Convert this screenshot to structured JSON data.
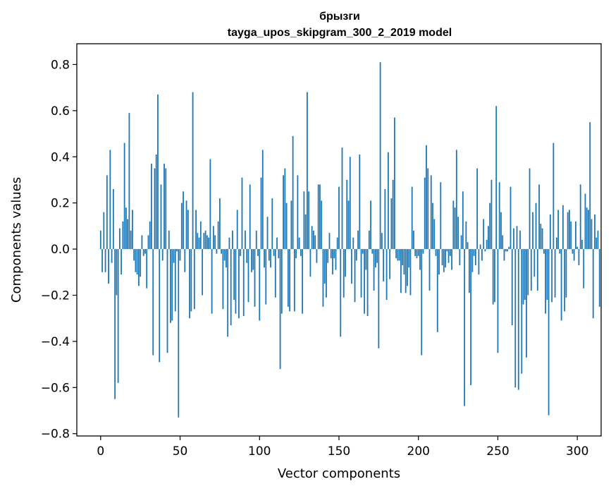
{
  "chart_data": {
    "type": "bar",
    "title": "брызги",
    "subtitle": "tayga_upos_skipgram_300_2_2019 model",
    "xlabel": "Vector components",
    "ylabel": "Components values",
    "xlim": [
      -15,
      315
    ],
    "ylim": [
      -0.81,
      0.89
    ],
    "xticks": [
      0,
      50,
      100,
      150,
      200,
      250,
      300
    ],
    "xtick_labels": [
      "0",
      "50",
      "100",
      "150",
      "200",
      "250",
      "300"
    ],
    "yticks": [
      -0.8,
      -0.6,
      -0.4,
      -0.2,
      0.0,
      0.2,
      0.4,
      0.6,
      0.8
    ],
    "ytick_labels": [
      "−0.8",
      "−0.6",
      "−0.4",
      "−0.2",
      "0.0",
      "0.2",
      "0.4",
      "0.6",
      "0.8"
    ],
    "bar_color": "#1f77b4",
    "grid": false,
    "values": [
      0.08,
      -0.1,
      0.16,
      -0.1,
      0.32,
      -0.15,
      0.43,
      -0.06,
      0.26,
      -0.65,
      -0.2,
      -0.58,
      0.09,
      -0.11,
      0.12,
      0.46,
      0.18,
      0.13,
      0.59,
      0.08,
      0.17,
      -0.05,
      -0.1,
      -0.11,
      -0.16,
      -0.12,
      0.06,
      -0.03,
      -0.02,
      -0.17,
      0.06,
      0.12,
      0.37,
      -0.46,
      0.35,
      0.41,
      0.67,
      -0.49,
      0.28,
      -0.05,
      0.37,
      0.35,
      -0.45,
      0.08,
      -0.32,
      -0.31,
      -0.06,
      -0.27,
      -0.01,
      -0.73,
      -0.05,
      0.2,
      0.25,
      -0.1,
      0.21,
      0.17,
      -0.3,
      -0.27,
      0.68,
      -0.26,
      0.17,
      0.07,
      0.05,
      0.12,
      -0.2,
      0.07,
      0.08,
      0.06,
      0.05,
      0.39,
      -0.28,
      0.1,
      0.06,
      -0.02,
      0.12,
      0.22,
      -0.02,
      -0.26,
      -0.05,
      -0.08,
      -0.38,
      0.05,
      -0.33,
      0.08,
      -0.22,
      -0.28,
      0.17,
      -0.3,
      -0.03,
      0.31,
      -0.29,
      0.08,
      -0.06,
      -0.23,
      0.28,
      -0.1,
      -0.09,
      -0.25,
      0.08,
      -0.03,
      -0.31,
      0.31,
      0.43,
      -0.08,
      -0.24,
      0.14,
      -0.05,
      -0.08,
      0.22,
      -0.03,
      -0.21,
      0.05,
      -0.04,
      -0.52,
      -0.28,
      0.32,
      0.35,
      0.2,
      -0.25,
      -0.27,
      0.21,
      0.49,
      -0.27,
      -0.04,
      0.32,
      0.05,
      -0.03,
      -0.28,
      0.25,
      0.15,
      0.68,
      0.25,
      -0.12,
      0.1,
      0.08,
      0.06,
      -0.06,
      0.28,
      0.28,
      0.21,
      -0.25,
      -0.15,
      -0.21,
      -0.06,
      0.07,
      -0.04,
      -0.11,
      -0.04,
      -0.09,
      0.05,
      0.27,
      -0.38,
      0.44,
      -0.21,
      -0.12,
      0.3,
      0.21,
      0.4,
      -0.15,
      0.05,
      -0.23,
      -0.05,
      0.08,
      0.41,
      -0.21,
      -0.02,
      -0.28,
      -0.09,
      -0.29,
      0.08,
      0.21,
      -0.02,
      -0.18,
      -0.08,
      -0.06,
      -0.43,
      0.81,
      0.07,
      -0.14,
      0.26,
      -0.22,
      0.42,
      -0.13,
      0.22,
      0.3,
      0.57,
      -0.04,
      -0.05,
      -0.05,
      -0.19,
      -0.07,
      -0.11,
      -0.19,
      -0.16,
      -0.08,
      -0.2,
      0.27,
      0.08,
      -0.03,
      -0.04,
      -0.03,
      -0.09,
      -0.46,
      -0.02,
      0.31,
      0.45,
      0.35,
      -0.18,
      0.32,
      0.2,
      0.13,
      -0.03,
      -0.36,
      -0.11,
      0.29,
      -0.07,
      -0.1,
      -0.08,
      -0.01,
      -0.06,
      -0.03,
      -0.09,
      0.21,
      0.18,
      0.43,
      0.14,
      -0.07,
      0.06,
      0.25,
      -0.68,
      0.12,
      0.03,
      -0.19,
      -0.59,
      -0.1,
      -0.03,
      -0.07,
      0.35,
      -0.11,
      0.02,
      -0.05,
      0.13,
      -0.01,
      0.04,
      0.1,
      0.2,
      0.3,
      -0.24,
      -0.23,
      0.62,
      -0.45,
      0.29,
      0.16,
      0.06,
      -0.05,
      -0.01,
      -0.01,
      0.01,
      0.27,
      -0.33,
      0.09,
      -0.6,
      0.1,
      -0.61,
      0.08,
      -0.54,
      -0.24,
      -0.22,
      -0.47,
      -0.2,
      0.35,
      -0.18,
      0.16,
      -0.12,
      0.2,
      -0.18,
      0.28,
      0.11,
      0.09,
      -0.02,
      -0.28,
      -0.22,
      -0.72,
      0.15,
      -0.23,
      0.46,
      -0.21,
      0.05,
      0.17,
      -0.02,
      -0.31,
      0.19,
      -0.27,
      -0.21,
      0.16,
      0.17,
      0.12,
      -0.02,
      -0.05,
      0.12,
      0.01,
      -0.07,
      0.28,
      0.04,
      -0.17,
      0.24,
      0.18,
      0.17,
      0.55,
      0.13,
      -0.3,
      0.15,
      0.05,
      0.08,
      -0.25
    ]
  }
}
